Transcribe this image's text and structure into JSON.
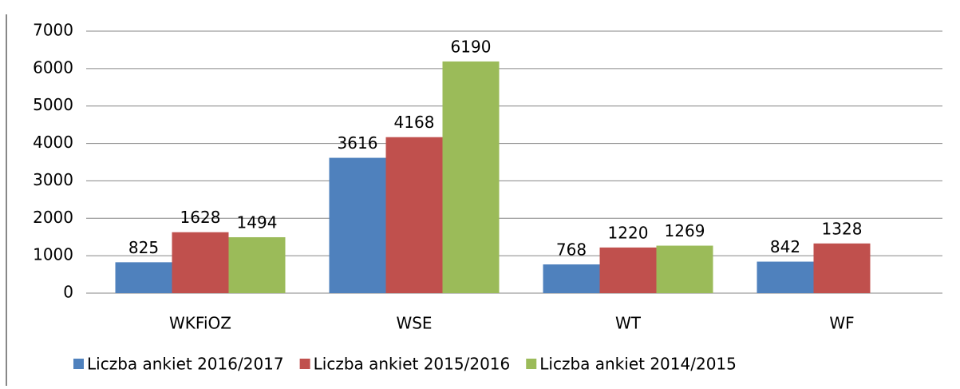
{
  "chart_data": {
    "type": "bar",
    "categories": [
      "WKFiOZ",
      "WSE",
      "WT",
      "WF"
    ],
    "series": [
      {
        "name": "Liczba ankiet 2016/2017",
        "color": "#4f81bd",
        "values": [
          825,
          3616,
          768,
          842
        ]
      },
      {
        "name": "Liczba ankiet 2015/2016",
        "color": "#c0504d",
        "values": [
          1628,
          4168,
          1220,
          1328
        ]
      },
      {
        "name": "Liczba ankiet 2014/2015",
        "color": "#9bbb59",
        "values": [
          1494,
          6190,
          1269,
          null
        ]
      }
    ],
    "ylim": [
      0,
      7000
    ],
    "yticks": [
      0,
      1000,
      2000,
      3000,
      4000,
      5000,
      6000,
      7000
    ],
    "grid": true,
    "legend": "bottom"
  }
}
